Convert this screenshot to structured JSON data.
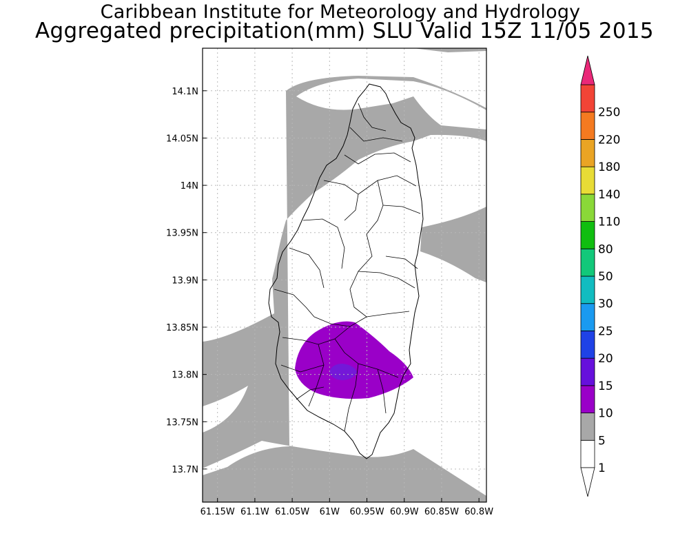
{
  "header": {
    "institute": "Caribbean Institute for Meteorology and Hydrology",
    "product": "Aggregated precipitation(mm) SLU Valid 15Z 11/05 2015"
  },
  "map": {
    "lon_range": [
      -61.17,
      -60.79
    ],
    "lat_range": [
      13.665,
      14.145
    ],
    "lon_ticks": [
      {
        "value": -61.15,
        "label": "61.15W"
      },
      {
        "value": -61.1,
        "label": "61.1W"
      },
      {
        "value": -61.05,
        "label": "61.05W"
      },
      {
        "value": -61.0,
        "label": "61W"
      },
      {
        "value": -60.95,
        "label": "60.95W"
      },
      {
        "value": -60.9,
        "label": "60.9W"
      },
      {
        "value": -60.85,
        "label": "60.85W"
      },
      {
        "value": -60.8,
        "label": "60.8W"
      }
    ],
    "lat_ticks": [
      {
        "value": 14.1,
        "label": "14.1N"
      },
      {
        "value": 14.05,
        "label": "14.05N"
      },
      {
        "value": 14.0,
        "label": "14N"
      },
      {
        "value": 13.95,
        "label": "13.95N"
      },
      {
        "value": 13.9,
        "label": "13.9N"
      },
      {
        "value": 13.85,
        "label": "13.85N"
      },
      {
        "value": 13.8,
        "label": "13.8N"
      },
      {
        "value": 13.75,
        "label": "13.75N"
      },
      {
        "value": 13.7,
        "label": "13.7N"
      }
    ],
    "grid": true,
    "field_colors": {
      "low": "#a8a8a8",
      "mid": "#9a00c8",
      "core": "#7418d8"
    }
  },
  "colorbar": {
    "levels": [
      {
        "label": "1",
        "color": "#ffffff"
      },
      {
        "label": "5",
        "color": "#a8a8a8"
      },
      {
        "label": "10",
        "color": "#9a00c8"
      },
      {
        "label": "15",
        "color": "#6610dc"
      },
      {
        "label": "20",
        "color": "#1f42e6"
      },
      {
        "label": "25",
        "color": "#1a9af0"
      },
      {
        "label": "30",
        "color": "#11bcc0"
      },
      {
        "label": "50",
        "color": "#12c87a"
      },
      {
        "label": "80",
        "color": "#10be10"
      },
      {
        "label": "110",
        "color": "#8ad838"
      },
      {
        "label": "140",
        "color": "#e8dc36"
      },
      {
        "label": "180",
        "color": "#eaa424"
      },
      {
        "label": "220",
        "color": "#f47a20"
      },
      {
        "label": "250",
        "color": "#f24436"
      }
    ],
    "top_triangle_color": "#ea2878",
    "bottom_triangle_color": "#ffffff"
  }
}
